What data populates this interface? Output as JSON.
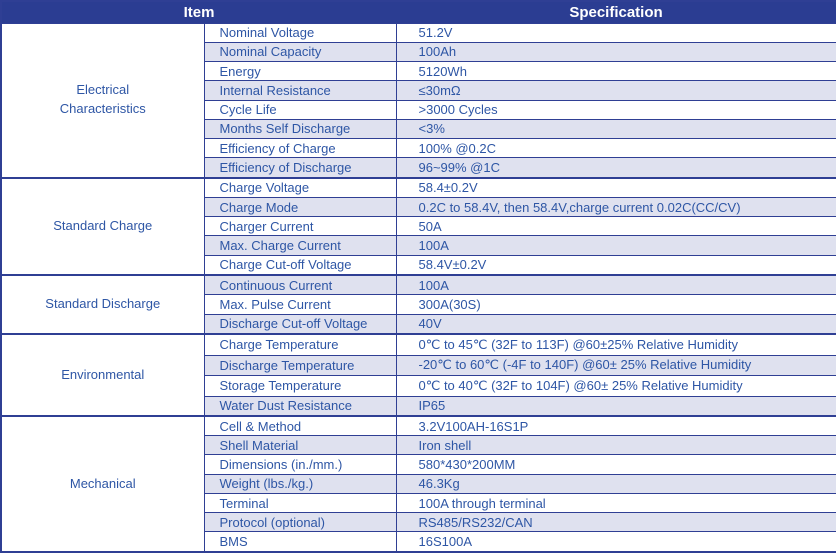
{
  "table": {
    "headers": {
      "item": "Item",
      "specification": "Specification"
    },
    "colors": {
      "header_bg": "#2b3d92",
      "header_text": "#ffffff",
      "row_bg": "#ffffff",
      "row_alt_bg": "#dfe1ef",
      "text": "#2e56a5",
      "border": "#2f3f94"
    },
    "sections": [
      {
        "category": "Electrical Characteristics",
        "rows": [
          {
            "item": "Nominal Voltage",
            "spec": "51.2V"
          },
          {
            "item": "Nominal Capacity",
            "spec": "100Ah"
          },
          {
            "item": "Energy",
            "spec": "5120Wh"
          },
          {
            "item": "Internal Resistance",
            "spec": "≤30mΩ"
          },
          {
            "item": "Cycle Life",
            "spec": ">3000 Cycles"
          },
          {
            "item": "Months Self Discharge",
            "spec": "<3%"
          },
          {
            "item": "Efficiency of Charge",
            "spec": "100% @0.2C"
          },
          {
            "item": "Efficiency of Discharge",
            "spec": "96~99% @1C"
          }
        ]
      },
      {
        "category": "Standard Charge",
        "rows": [
          {
            "item": "Charge Voltage",
            "spec": "58.4±0.2V"
          },
          {
            "item": "Charge Mode",
            "spec": "0.2C to 58.4V, then 58.4V,charge current 0.02C(CC/CV)"
          },
          {
            "item": "Charger Current",
            "spec": "50A"
          },
          {
            "item": "Max. Charge Current",
            "spec": "100A"
          },
          {
            "item": "Charge Cut-off Voltage",
            "spec": "58.4V±0.2V"
          }
        ]
      },
      {
        "category": "Standard Discharge",
        "rows": [
          {
            "item": "Continuous Current",
            "spec": "100A"
          },
          {
            "item": "Max. Pulse Current",
            "spec": "300A(30S)"
          },
          {
            "item": "Discharge Cut-off Voltage",
            "spec": "40V"
          }
        ]
      },
      {
        "category": "Environmental",
        "rows": [
          {
            "item": "Charge Temperature",
            "spec": "0℃ to 45℃ (32F to 113F) @60±25% Relative Humidity"
          },
          {
            "item": "Discharge Temperature",
            "spec": "-20℃ to 60℃ (-4F to 140F) @60± 25% Relative Humidity"
          },
          {
            "item": "Storage Temperature",
            "spec": "0℃ to 40℃ (32F to 104F) @60± 25% Relative Humidity"
          },
          {
            "item": "Water Dust Resistance",
            "spec": "IP65"
          }
        ]
      },
      {
        "category": "Mechanical",
        "rows": [
          {
            "item": "Cell & Method",
            "spec": "3.2V100AH-16S1P"
          },
          {
            "item": "Shell Material",
            "spec": "Iron shell"
          },
          {
            "item": "Dimensions (in./mm.)",
            "spec": "580*430*200MM"
          },
          {
            "item": "Weight (lbs./kg.)",
            "spec": "46.3Kg"
          },
          {
            "item": "Terminal",
            "spec": "100A through terminal"
          },
          {
            "item": "Protocol (optional)",
            "spec": "RS485/RS232/CAN"
          },
          {
            "item": "BMS",
            "spec": "16S100A"
          }
        ]
      }
    ]
  }
}
